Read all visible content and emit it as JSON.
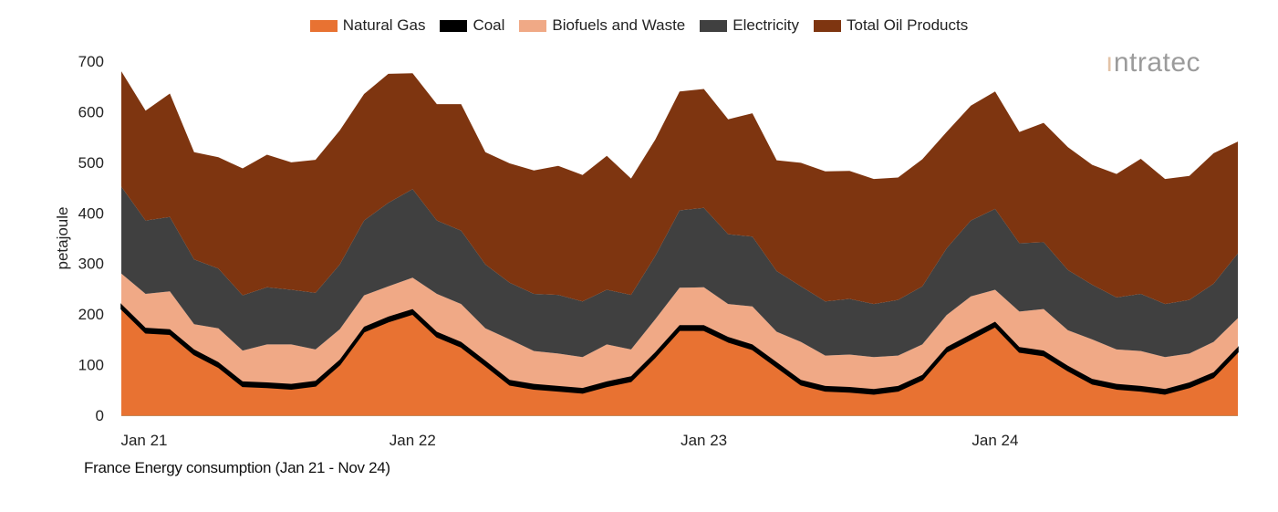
{
  "chart_data": {
    "type": "area",
    "stacked": true,
    "title": "France Energy consumption (Jan 21 - Nov 24)",
    "xlabel": "",
    "ylabel": "petajoule",
    "ylim": [
      0,
      700
    ],
    "yticks": [
      0,
      100,
      200,
      300,
      400,
      500,
      600,
      700
    ],
    "xtick_labels": [
      "Jan 21",
      "Jan 22",
      "Jan 23",
      "Jan 24"
    ],
    "xtick_month_index": [
      0,
      12,
      24,
      36
    ],
    "n_months": 47,
    "grid": false,
    "legend_position": "top",
    "series": [
      {
        "name": "Natural Gas",
        "color": "#E87232",
        "values": [
          210,
          163,
          160,
          120,
          95,
          57,
          55,
          52,
          58,
          100,
          165,
          185,
          200,
          155,
          135,
          98,
          60,
          52,
          48,
          44,
          57,
          67,
          115,
          168,
          168,
          145,
          130,
          95,
          60,
          48,
          46,
          42,
          48,
          70,
          125,
          150,
          175,
          125,
          118,
          88,
          62,
          52,
          48,
          42,
          55,
          75,
          125
        ]
      },
      {
        "name": "Coal",
        "color": "#000000",
        "values": [
          10,
          10,
          10,
          10,
          10,
          10,
          10,
          10,
          10,
          10,
          10,
          10,
          10,
          10,
          10,
          10,
          10,
          10,
          10,
          10,
          10,
          10,
          10,
          10,
          10,
          10,
          10,
          10,
          10,
          10,
          10,
          10,
          10,
          10,
          10,
          10,
          10,
          10,
          10,
          10,
          10,
          10,
          10,
          10,
          10,
          10,
          10
        ]
      },
      {
        "name": "Biofuels and Waste",
        "color": "#F0A986",
        "values": [
          60,
          67,
          75,
          50,
          67,
          61,
          75,
          78,
          62,
          60,
          62,
          60,
          62,
          75,
          75,
          64,
          80,
          65,
          64,
          61,
          73,
          53,
          65,
          74,
          75,
          65,
          75,
          60,
          75,
          60,
          64,
          63,
          60,
          60,
          63,
          75,
          63,
          70,
          82,
          70,
          78,
          68,
          69,
          63,
          57,
          60,
          57
        ]
      },
      {
        "name": "Electricity",
        "color": "#404040",
        "values": [
          172,
          145,
          147,
          128,
          118,
          109,
          113,
          108,
          112,
          128,
          148,
          165,
          175,
          145,
          145,
          126,
          112,
          113,
          116,
          110,
          108,
          108,
          125,
          153,
          157,
          138,
          138,
          120,
          110,
          107,
          110,
          105,
          110,
          115,
          132,
          150,
          160,
          135,
          132,
          119,
          108,
          103,
          113,
          105,
          106,
          115,
          128
        ]
      },
      {
        "name": "Total Oil Products",
        "color": "#7E3510",
        "values": [
          228,
          217,
          244,
          212,
          220,
          251,
          262,
          252,
          263,
          265,
          250,
          255,
          229,
          230,
          250,
          222,
          236,
          244,
          255,
          250,
          265,
          230,
          230,
          235,
          235,
          227,
          244,
          219,
          244,
          257,
          253,
          247,
          242,
          251,
          230,
          227,
          232,
          220,
          236,
          243,
          237,
          244,
          267,
          247,
          245,
          258,
          221
        ]
      }
    ]
  },
  "logo": "intratec"
}
